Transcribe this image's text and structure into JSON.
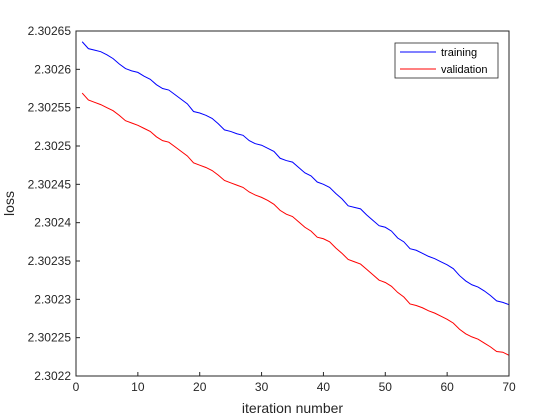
{
  "chart_data": {
    "type": "line",
    "title": "",
    "xlabel": "iteration number",
    "ylabel": "loss",
    "xlim": [
      0,
      70
    ],
    "ylim": [
      2.3022,
      2.30265
    ],
    "xticks": [
      0,
      10,
      20,
      30,
      40,
      50,
      60,
      70
    ],
    "yticks": [
      2.3022,
      2.30225,
      2.3023,
      2.30235,
      2.3024,
      2.30245,
      2.3025,
      2.30255,
      2.3026,
      2.30265
    ],
    "ytick_labels": [
      "2.3022",
      "2.30225",
      "2.3023",
      "2.30235",
      "2.3024",
      "2.30245",
      "2.3025",
      "2.30255",
      "2.3026",
      "2.30265"
    ],
    "grid": false,
    "legend_position": "top-right",
    "x": [
      1,
      2,
      3,
      4,
      5,
      6,
      7,
      8,
      9,
      10,
      11,
      12,
      13,
      14,
      15,
      16,
      17,
      18,
      19,
      20,
      21,
      22,
      23,
      24,
      25,
      26,
      27,
      28,
      29,
      30,
      31,
      32,
      33,
      34,
      35,
      36,
      37,
      38,
      39,
      40,
      41,
      42,
      43,
      44,
      45,
      46,
      47,
      48,
      49,
      50,
      51,
      52,
      53,
      54,
      55,
      56,
      57,
      58,
      59,
      60,
      61,
      62,
      63,
      64,
      65,
      66,
      67,
      68,
      69,
      70
    ],
    "series": [
      {
        "name": "training",
        "color": "#0000ff",
        "values": [
          2.302636,
          2.302627,
          2.302625,
          2.302623,
          2.302619,
          2.302614,
          2.302607,
          2.302601,
          2.302598,
          2.302596,
          2.302591,
          2.302587,
          2.30258,
          2.302575,
          2.302573,
          2.302567,
          2.302561,
          2.302555,
          2.302545,
          2.302543,
          2.30254,
          2.302536,
          2.302529,
          2.302521,
          2.302519,
          2.302516,
          2.302514,
          2.302507,
          2.302503,
          2.302501,
          2.302497,
          2.302493,
          2.302484,
          2.302481,
          2.302479,
          2.302472,
          2.302465,
          2.302461,
          2.302453,
          2.30245,
          2.302446,
          2.302438,
          2.302431,
          2.302422,
          2.30242,
          2.302418,
          2.30241,
          2.302403,
          2.302396,
          2.302394,
          2.302389,
          2.30238,
          2.302375,
          2.302366,
          2.302364,
          2.30236,
          2.302356,
          2.302353,
          2.302349,
          2.302345,
          2.30234,
          2.302331,
          2.302324,
          2.302319,
          2.302316,
          2.302311,
          2.302305,
          2.302298,
          2.302296,
          2.302293
        ]
      },
      {
        "name": "validation",
        "color": "#ff0000",
        "values": [
          2.302569,
          2.30256,
          2.302557,
          2.302554,
          2.30255,
          2.302546,
          2.30254,
          2.302533,
          2.30253,
          2.302527,
          2.302523,
          2.302519,
          2.302512,
          2.302507,
          2.302505,
          2.302499,
          2.302493,
          2.302487,
          2.302478,
          2.302475,
          2.302472,
          2.302468,
          2.302462,
          2.302455,
          2.302452,
          2.302449,
          2.302446,
          2.30244,
          2.302436,
          2.302433,
          2.302429,
          2.302424,
          2.302416,
          2.302411,
          2.302408,
          2.302401,
          2.302394,
          2.302389,
          2.302381,
          2.302379,
          2.302375,
          2.302367,
          2.30236,
          2.302352,
          2.302349,
          2.302346,
          2.302339,
          2.302332,
          2.302325,
          2.302322,
          2.302317,
          2.302309,
          2.302303,
          2.302294,
          2.302292,
          2.302289,
          2.302285,
          2.302282,
          2.302278,
          2.302274,
          2.302269,
          2.302261,
          2.302255,
          2.302251,
          2.302248,
          2.302243,
          2.302238,
          2.302232,
          2.302231,
          2.302227
        ]
      }
    ]
  }
}
